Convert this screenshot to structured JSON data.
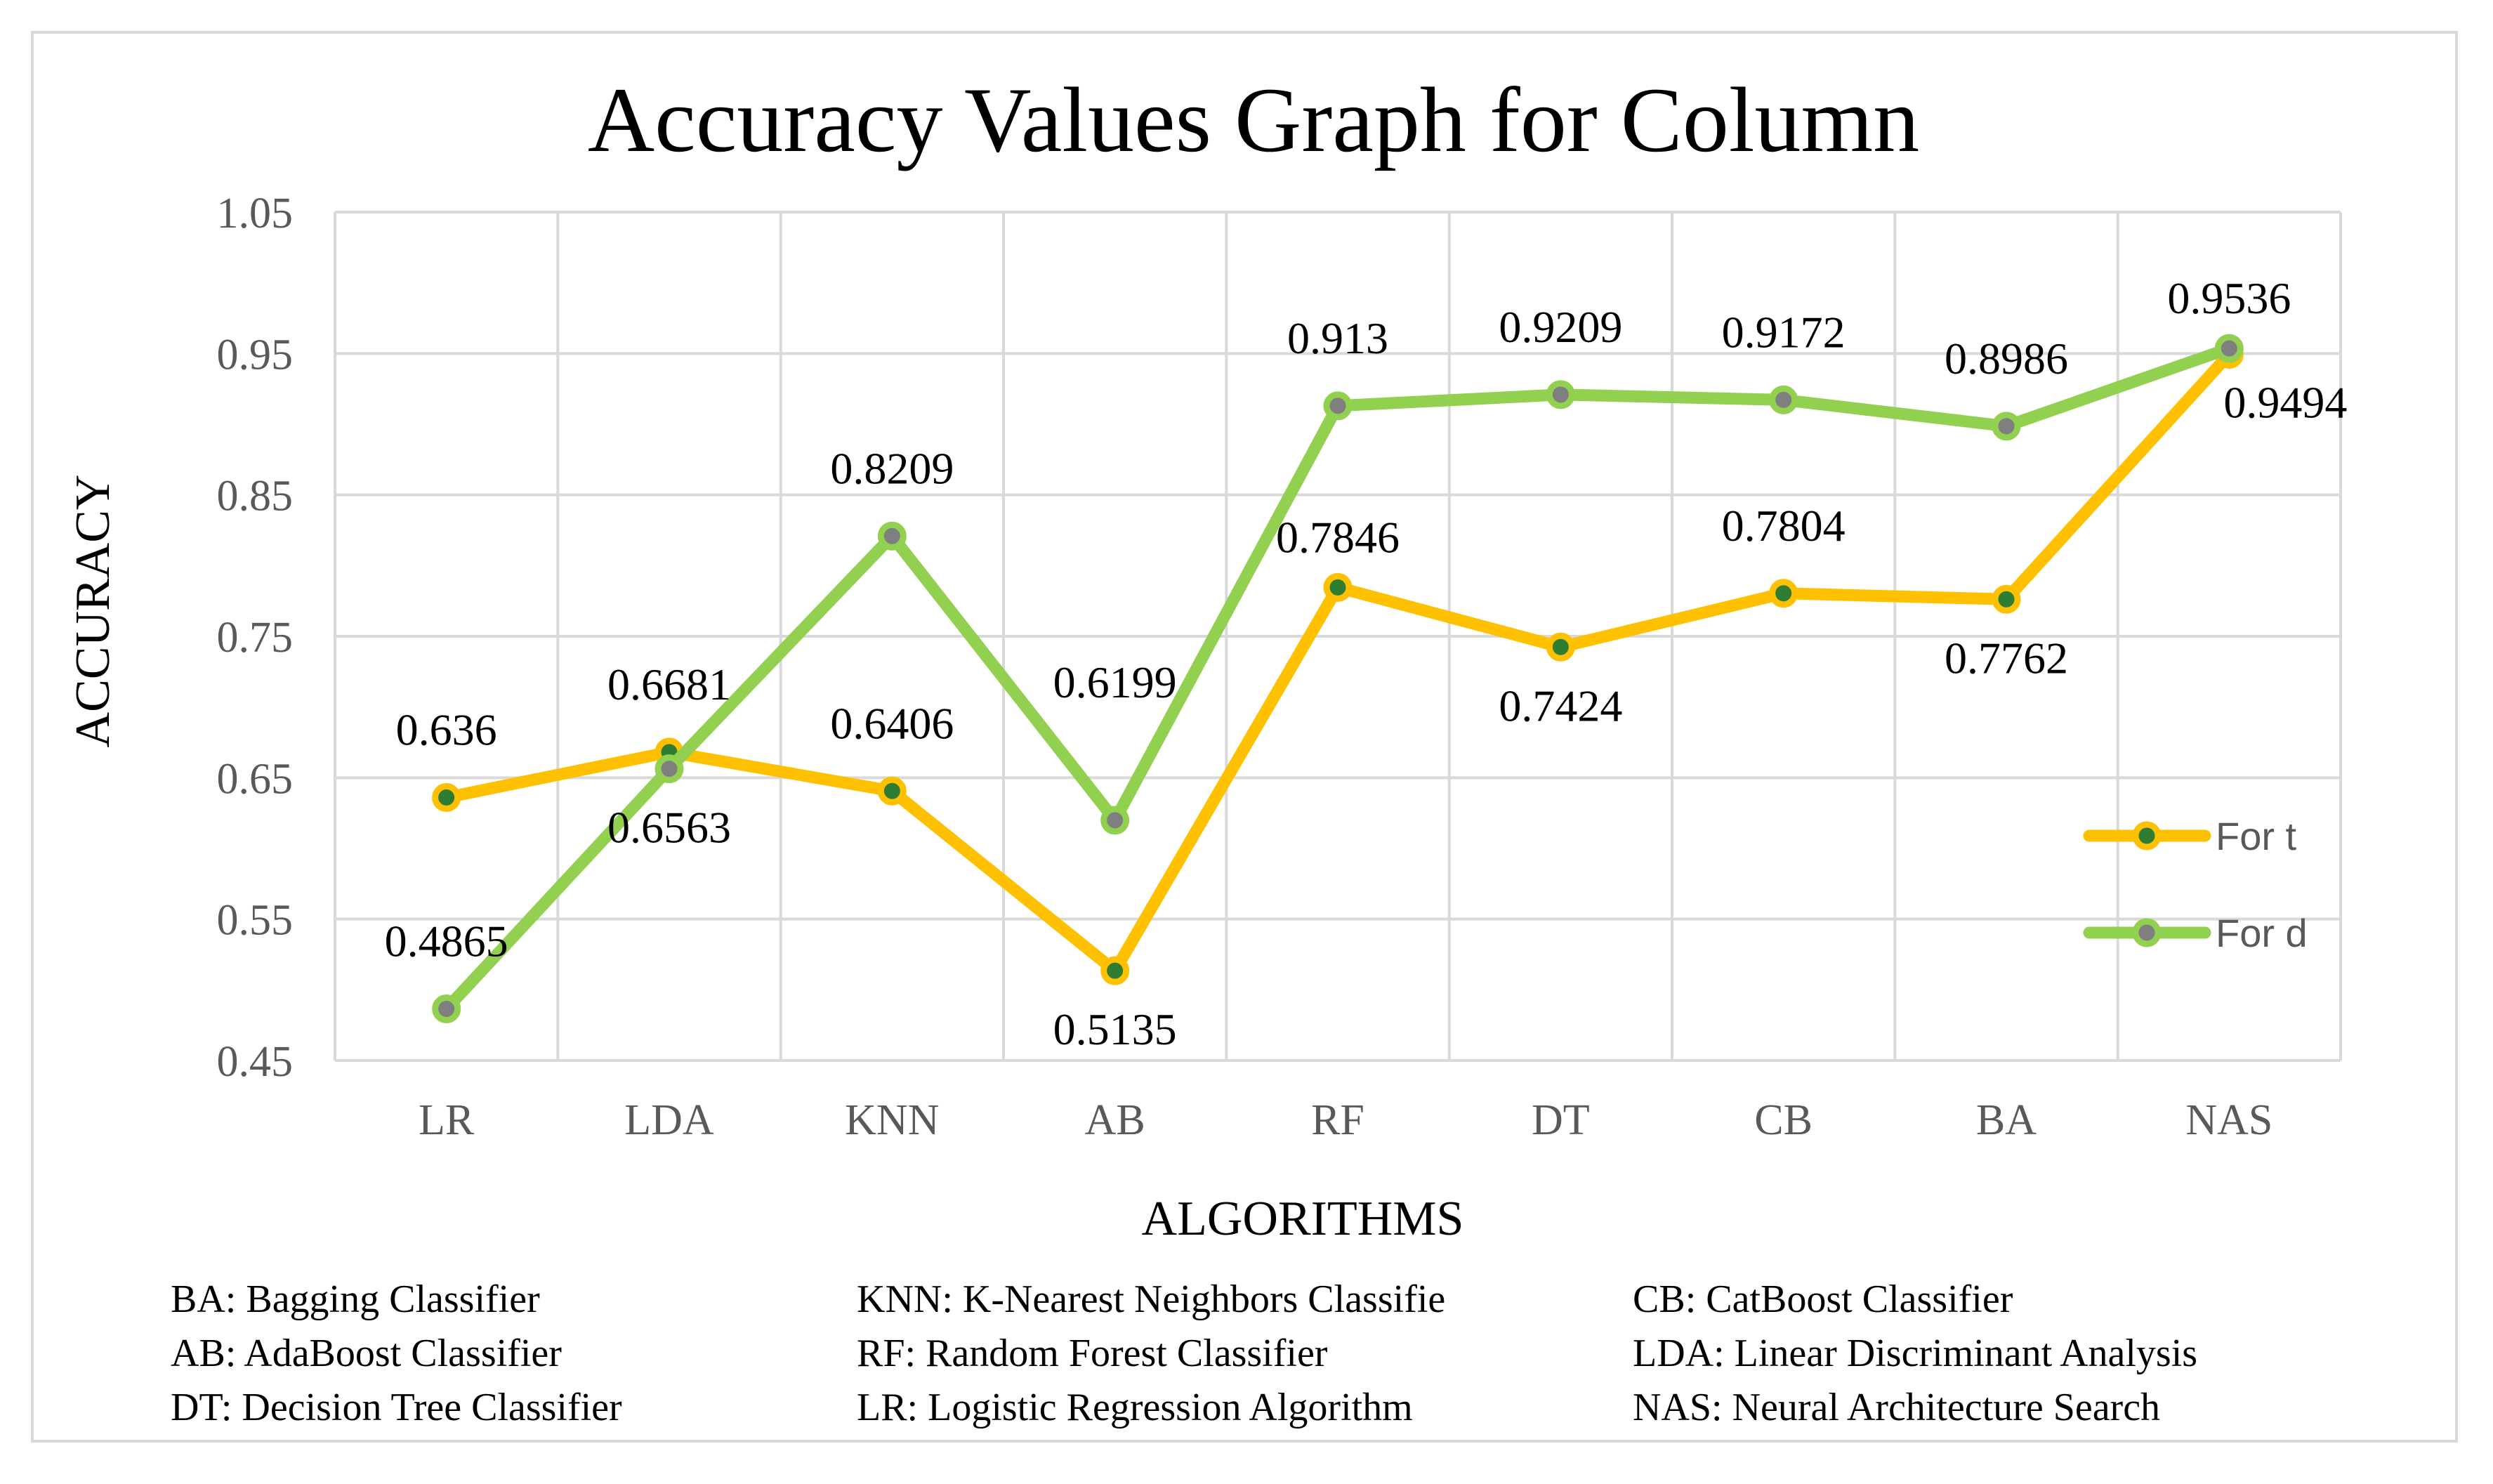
{
  "chart_data": {
    "type": "line",
    "title": "Accuracy Values Graph for Column",
    "xlabel": "ALGORITHMS",
    "ylabel": "ACCURACY",
    "categories": [
      "LR",
      "LDA",
      "KNN",
      "AB",
      "RF",
      "DT",
      "CB",
      "BA",
      "NAS"
    ],
    "ylim": [
      0.45,
      1.05
    ],
    "yticks": [
      "0.45",
      "0.55",
      "0.65",
      "0.75",
      "0.85",
      "0.95",
      "1.05"
    ],
    "grid": true,
    "legend_position": "right",
    "series": [
      {
        "name": "For t",
        "color": "#ffc000",
        "marker_color": "#2e7d32",
        "values": [
          0.636,
          0.6681,
          0.6406,
          0.5135,
          0.7846,
          0.7424,
          0.7804,
          0.7762,
          0.9494
        ],
        "labels": [
          "0.636",
          "0.6681",
          "0.6406",
          "0.5135",
          "0.7846",
          "0.7424",
          "0.7804",
          "0.7762",
          "0.9494"
        ]
      },
      {
        "name": "For d",
        "color": "#92d050",
        "marker_color": "#7f7f7f",
        "values": [
          0.4865,
          0.6563,
          0.8209,
          0.6199,
          0.913,
          0.9209,
          0.9172,
          0.8986,
          0.9536
        ],
        "labels": [
          "0.4865",
          "0.6563",
          "0.8209",
          "0.6199",
          "0.913",
          "0.9209",
          "0.9172",
          "0.8986",
          "0.9536"
        ]
      }
    ],
    "abbreviations": [
      [
        "BA: Bagging Classifier",
        "KNN: K-Nearest Neighbors Classifie",
        "CB: CatBoost Classifier"
      ],
      [
        "AB: AdaBoost Classifier",
        "RF: Random Forest Classifier",
        "LDA: Linear Discriminant Analysis"
      ],
      [
        "DT: Decision Tree Classifier",
        "LR: Logistic Regression Algorithm",
        "NAS: Neural Architecture Search"
      ]
    ]
  }
}
